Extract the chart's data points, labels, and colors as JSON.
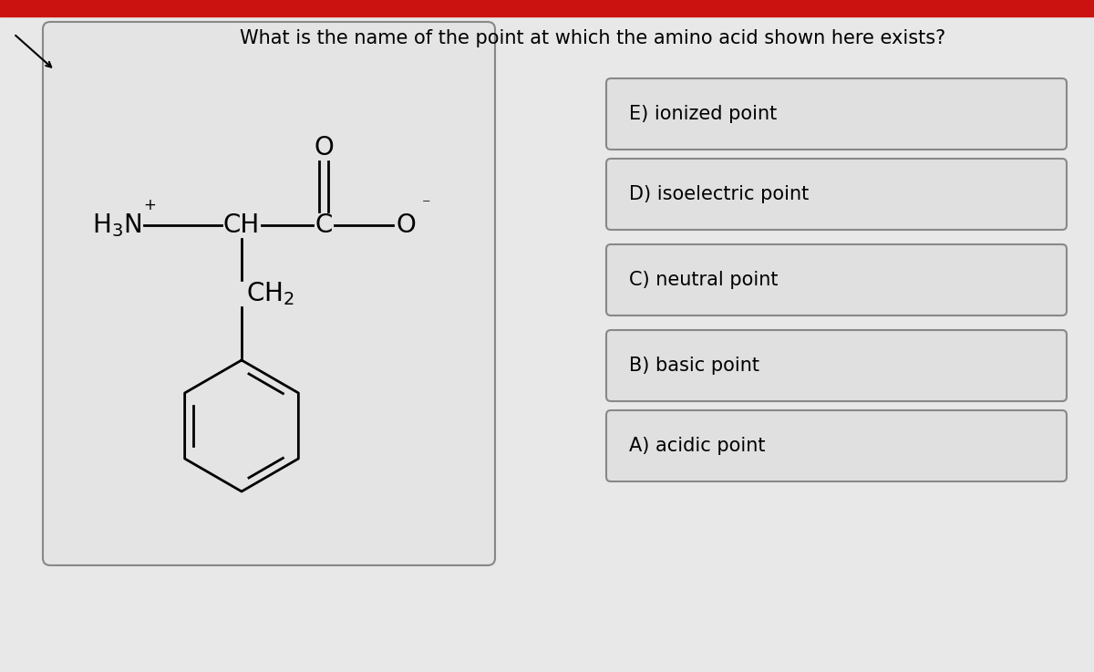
{
  "title": "What is the name of the point at which the amino acid shown here exists?",
  "title_fontsize": 15,
  "background_color": "#e8e8e8",
  "top_bar_color": "#cc1111",
  "choices": [
    "A) acidic point",
    "B) basic point",
    "C) neutral point",
    "D) isoelectric point",
    "E) ionized point"
  ],
  "choice_box_color": "#e0e0e0",
  "choice_box_edge_color": "#888888",
  "choice_fontsize": 15,
  "molecule_box_color": "#e4e4e4",
  "molecule_box_edge_color": "#888888"
}
